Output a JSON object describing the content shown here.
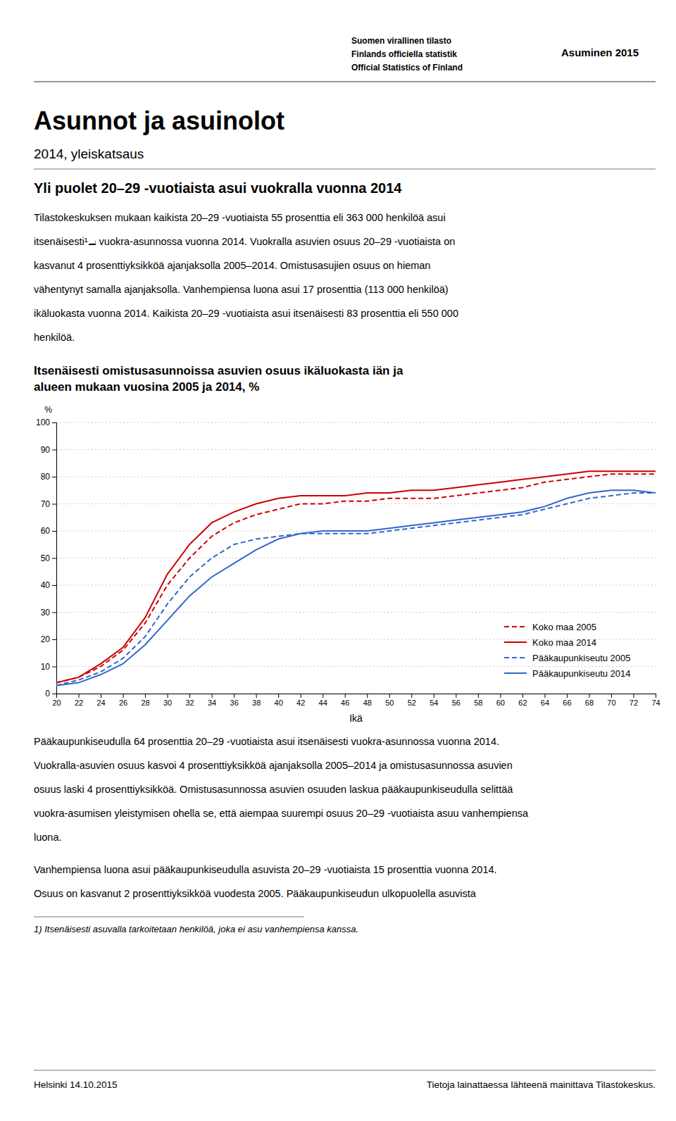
{
  "page": {
    "header_lines": [
      "Suomen virallinen tilasto",
      "Finlands officiella statistik",
      "Official Statistics of Finland"
    ],
    "header_right": "Asuminen 2015",
    "title": "Asunnot ja asuinolot",
    "subtitle": "2014, yleiskatsaus",
    "section_heading": "Yli puolet 20–29 -vuotiaista asui vuokralla vuonna 2014",
    "body_paragraphs": [
      [
        "Tilastokeskuksen mukaan kaikista 20–29 -vuotiaista 55 prosenttia eli 363 000 henkilöä asui",
        "itsenäisesti¹⧡ vuokra-asunnossa vuonna 2014. Vuokralla asuvien osuus 20–29 -vuotiaista on",
        "kasvanut 4 prosenttiyksikköä ajanjaksolla 2005–2014. Omistusasujien osuus on hieman",
        "vähentynyt samalla ajanjaksolla. Vanhempiensa luona asui 17 prosenttia (113 000 henkilöä)",
        "ikäluokasta vuonna 2014. Kaikista 20–29 -vuotiaista asui itsenäisesti 83 prosenttia eli 550 000",
        "henkilöä."
      ],
      [
        "Pääkaupunkiseudulla 64 prosenttia 20–29 -vuotiaista asui itsenäisesti vuokra-asunnossa vuonna 2014.",
        "Vuokralla-asuvien osuus kasvoi 4 prosenttiyksikköä ajanjaksolla 2005–2014 ja omistusasunnossa asuvien",
        "osuus laski 4 prosenttiyksikköä. Omistusasunnossa asuvien osuuden laskua pääkaupunkiseudulla selittää",
        "vuokra-asumisen yleistymisen ohella se, että aiempaa suurempi osuus 20–29 -vuotiaista asuu vanhempiensa",
        "luona."
      ],
      [
        "Vanhempiensa luona asui pääkaupunkiseudulla asuvista 20–29 -vuotiaista 15 prosenttia vuonna 2014.",
        "Osuus on kasvanut 2 prosenttiyksikköä vuodesta 2005. Pääkaupunkiseudun ulkopuolella asuvista"
      ]
    ],
    "footnote": "1) Itsenäisesti asuvalla tarkoitetaan henkilöä, joka ei asu vanhempiensa kanssa.",
    "footer_left": "Helsinki 14.10.2015",
    "footer_right": "Tietoja lainattaessa lähteenä mainittava Tilastokeskus."
  },
  "chart_data": {
    "type": "line",
    "title": [
      "Itsenäisesti omistusasunnoissa asuvien osuus ikäluokasta iän ja",
      "alueen mukaan vuosina 2005 ja 2014, %"
    ],
    "x_label": "Ikä",
    "y_label": "%",
    "x": [
      20,
      22,
      24,
      26,
      28,
      30,
      32,
      34,
      36,
      38,
      40,
      42,
      44,
      46,
      48,
      50,
      52,
      54,
      56,
      58,
      60,
      62,
      64,
      66,
      68,
      70,
      72,
      74
    ],
    "xlim": [
      20,
      74
    ],
    "xticks": [
      20,
      22,
      24,
      26,
      28,
      30,
      32,
      34,
      36,
      38,
      40,
      42,
      44,
      46,
      48,
      50,
      52,
      54,
      56,
      58,
      60,
      62,
      64,
      66,
      68,
      70,
      72,
      74
    ],
    "ylim": [
      0,
      100
    ],
    "yticks": [
      0,
      10,
      20,
      30,
      40,
      50,
      60,
      70,
      80,
      90,
      100
    ],
    "grid": true,
    "legend": "lower right",
    "series": [
      {
        "name": "Koko maa 2005",
        "color": "#cc0000",
        "line_style": "dashed",
        "values": [
          4,
          6,
          10,
          16,
          26,
          40,
          50,
          58,
          63,
          66,
          68,
          70,
          70,
          71,
          71,
          72,
          72,
          72,
          73,
          74,
          75,
          76,
          78,
          79,
          80,
          81,
          81,
          81
        ]
      },
      {
        "name": "Koko maa 2014",
        "color": "#cc0000",
        "line_style": "solid",
        "values": [
          4,
          6,
          11,
          17,
          28,
          44,
          55,
          63,
          67,
          70,
          72,
          73,
          73,
          73,
          74,
          74,
          75,
          75,
          76,
          77,
          78,
          79,
          80,
          81,
          82,
          82,
          82,
          82
        ]
      },
      {
        "name": "Pääkaupunkiseutu 2005",
        "color": "#3366cc",
        "line_style": "dashed",
        "values": [
          3,
          5,
          8,
          13,
          21,
          33,
          43,
          50,
          55,
          57,
          58,
          59,
          59,
          59,
          59,
          60,
          61,
          62,
          63,
          64,
          65,
          66,
          68,
          70,
          72,
          73,
          74,
          74
        ]
      },
      {
        "name": "Pääkaupunkiseutu 2014",
        "color": "#3366cc",
        "line_style": "solid",
        "values": [
          3,
          4,
          7,
          11,
          18,
          27,
          36,
          43,
          48,
          53,
          57,
          59,
          60,
          60,
          60,
          61,
          62,
          63,
          64,
          65,
          66,
          67,
          69,
          72,
          74,
          75,
          75,
          74
        ]
      }
    ]
  }
}
